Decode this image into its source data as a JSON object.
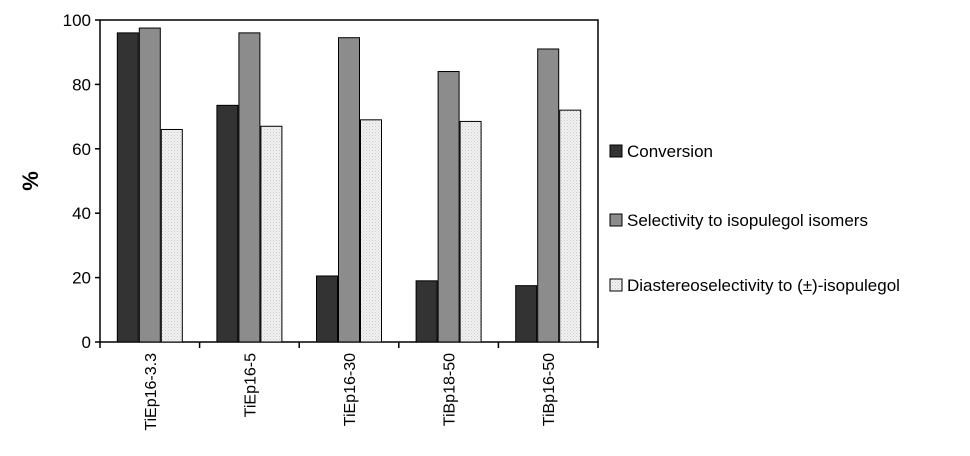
{
  "chart_data": {
    "type": "bar",
    "title": "",
    "xlabel": "",
    "ylabel": "%",
    "ylim": [
      0,
      100
    ],
    "yticks": [
      0,
      20,
      40,
      60,
      80,
      100
    ],
    "grid": false,
    "legend_position": "right",
    "categories": [
      "TiEp16-3.3",
      "TiEp16-5",
      "TiEp16-30",
      "TiBp18-50",
      "TiBp16-50"
    ],
    "series": [
      {
        "name": "Conversion",
        "values": [
          96,
          73.5,
          20.5,
          19,
          17.5
        ],
        "color": "#333333"
      },
      {
        "name": "Selectivity to isopulegol isomers",
        "values": [
          97.5,
          96,
          94.5,
          84,
          91
        ],
        "color": "#8c8c8c"
      },
      {
        "name": "Diastereoselectivity to (±)-isopulegol",
        "values": [
          66,
          67,
          69,
          68.5,
          72
        ],
        "color": "#e8e8e8"
      }
    ]
  }
}
